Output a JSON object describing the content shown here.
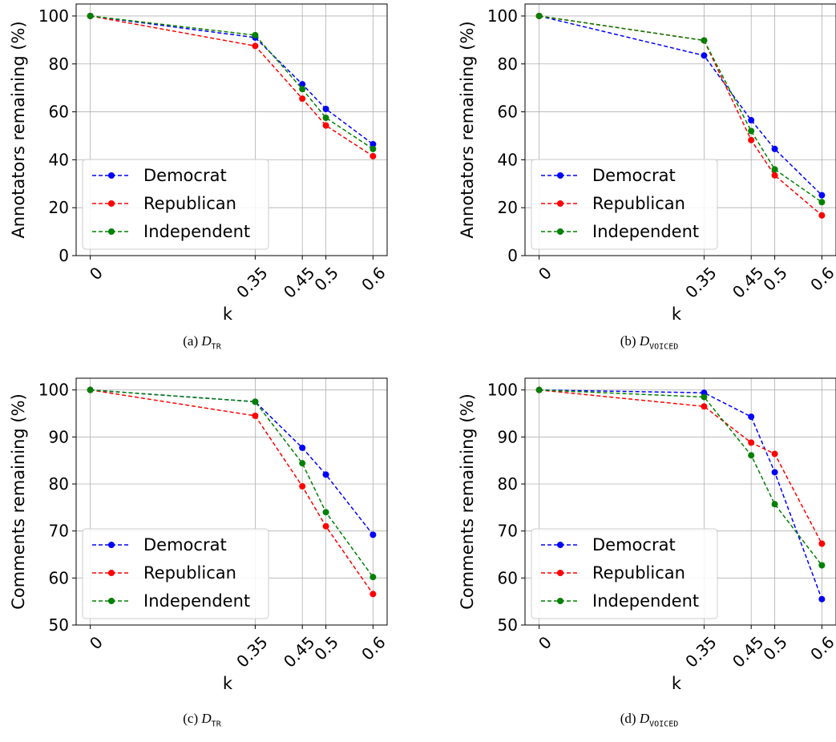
{
  "chart_data": [
    {
      "type": "line",
      "caption": {
        "prefix": "(a)",
        "dataset_main": "D",
        "dataset_sub": "TR"
      },
      "xlabel": "k",
      "ylabel": "Annotators remaining (%)",
      "x": [
        0,
        0.35,
        0.45,
        0.5,
        0.6
      ],
      "xtick_labels": [
        "0",
        "0.35",
        "0.45",
        "0.5",
        "0.6"
      ],
      "ylim": [
        0,
        105
      ],
      "yticks": [
        0,
        20,
        40,
        60,
        80,
        100
      ],
      "grid": true,
      "legend_position": "lower-left",
      "series": [
        {
          "name": "Democrat",
          "color": "#0000ff",
          "values": [
            100,
            91,
            71.5,
            61.2,
            46.5
          ]
        },
        {
          "name": "Republican",
          "color": "#ff0000",
          "values": [
            100,
            87.5,
            65.5,
            54.3,
            41.5
          ]
        },
        {
          "name": "Independent",
          "color": "#008000",
          "values": [
            100,
            92,
            69.5,
            57.5,
            44.5
          ]
        }
      ]
    },
    {
      "type": "line",
      "caption": {
        "prefix": "(b)",
        "dataset_main": "D",
        "dataset_sub": "VOICED"
      },
      "xlabel": "k",
      "ylabel": "Annotators remaining (%)",
      "x": [
        0,
        0.35,
        0.45,
        0.5,
        0.6
      ],
      "xtick_labels": [
        "0",
        "0.35",
        "0.45",
        "0.5",
        "0.6"
      ],
      "ylim": [
        0,
        105
      ],
      "yticks": [
        0,
        20,
        40,
        60,
        80,
        100
      ],
      "grid": true,
      "legend_position": "lower-left",
      "series": [
        {
          "name": "Democrat",
          "color": "#0000ff",
          "values": [
            100,
            83.5,
            56.5,
            44.5,
            25.2
          ]
        },
        {
          "name": "Republican",
          "color": "#ff0000",
          "values": [
            100,
            89.8,
            48.2,
            33.5,
            16.8
          ]
        },
        {
          "name": "Independent",
          "color": "#008000",
          "values": [
            100,
            89.8,
            52.0,
            36.0,
            22.3
          ]
        }
      ]
    },
    {
      "type": "line",
      "caption": {
        "prefix": "(c)",
        "dataset_main": "D",
        "dataset_sub": "TR"
      },
      "xlabel": "k",
      "ylabel": "Comments remaining (%)",
      "x": [
        0,
        0.35,
        0.45,
        0.5,
        0.6
      ],
      "xtick_labels": [
        "0",
        "0.35",
        "0.45",
        "0.5",
        "0.6"
      ],
      "ylim": [
        50,
        102.5
      ],
      "yticks": [
        50,
        60,
        70,
        80,
        90,
        100
      ],
      "grid": true,
      "legend_position": "lower-left",
      "series": [
        {
          "name": "Democrat",
          "color": "#0000ff",
          "values": [
            100,
            97.5,
            87.7,
            82.0,
            69.2
          ]
        },
        {
          "name": "Republican",
          "color": "#ff0000",
          "values": [
            100,
            94.5,
            79.5,
            71.0,
            56.6
          ]
        },
        {
          "name": "Independent",
          "color": "#008000",
          "values": [
            100,
            97.5,
            84.4,
            74.0,
            60.2
          ]
        }
      ]
    },
    {
      "type": "line",
      "caption": {
        "prefix": "(d)",
        "dataset_main": "D",
        "dataset_sub": "VOICED"
      },
      "xlabel": "k",
      "ylabel": "Comments remaining (%)",
      "x": [
        0,
        0.35,
        0.45,
        0.5,
        0.6
      ],
      "xtick_labels": [
        "0",
        "0.35",
        "0.45",
        "0.5",
        "0.6"
      ],
      "ylim": [
        50,
        102.5
      ],
      "yticks": [
        50,
        60,
        70,
        80,
        90,
        100
      ],
      "grid": true,
      "legend_position": "lower-left",
      "series": [
        {
          "name": "Democrat",
          "color": "#0000ff",
          "values": [
            100,
            99.4,
            94.3,
            82.5,
            55.5
          ]
        },
        {
          "name": "Republican",
          "color": "#ff0000",
          "values": [
            100,
            96.5,
            88.8,
            86.4,
            67.3
          ]
        },
        {
          "name": "Independent",
          "color": "#008000",
          "values": [
            100,
            98.5,
            86.1,
            75.7,
            62.7
          ]
        }
      ]
    }
  ]
}
